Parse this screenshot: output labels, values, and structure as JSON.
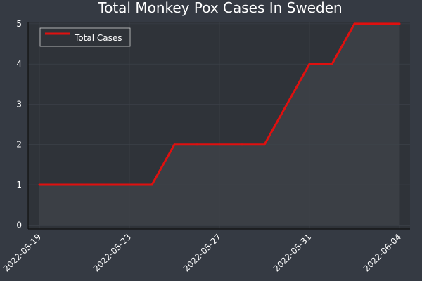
{
  "chart_data": {
    "type": "line",
    "title": "Total Monkey Pox Cases In Sweden",
    "xlabel": "",
    "ylabel": "",
    "x": [
      "2022-05-19",
      "2022-05-20",
      "2022-05-21",
      "2022-05-22",
      "2022-05-23",
      "2022-05-24",
      "2022-05-25",
      "2022-05-26",
      "2022-05-27",
      "2022-05-28",
      "2022-05-29",
      "2022-05-30",
      "2022-05-31",
      "2022-06-01",
      "2022-06-02",
      "2022-06-03",
      "2022-06-04"
    ],
    "x_ticks": [
      "2022-05-19",
      "2022-05-23",
      "2022-05-27",
      "2022-05-31",
      "2022-06-04"
    ],
    "y_ticks": [
      0,
      1,
      2,
      3,
      4,
      5
    ],
    "ylim": [
      -0.1,
      5.05
    ],
    "series": [
      {
        "name": "Total Cases",
        "color": "#e0100f",
        "values": [
          1,
          1,
          1,
          1,
          1,
          1,
          2,
          2,
          2,
          2,
          2,
          3,
          4,
          4,
          5,
          5,
          5
        ]
      }
    ],
    "legend": {
      "position": "top-left"
    },
    "grid": true,
    "fill_area": true,
    "background": "#353a43",
    "plot_background": "#2f3339",
    "area_color": "#3d4047"
  }
}
